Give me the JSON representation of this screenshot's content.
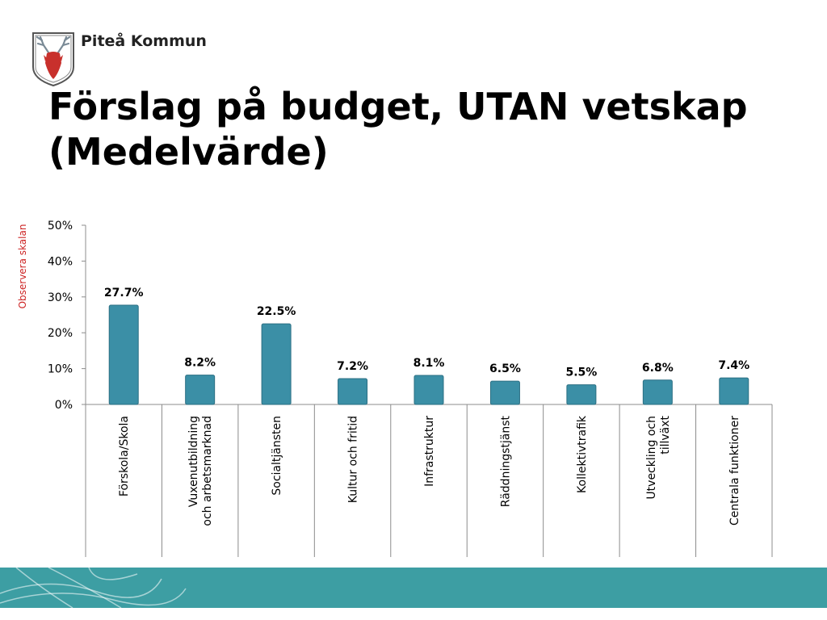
{
  "header": {
    "brand": "Piteå Kommun"
  },
  "slide": {
    "title": "Förslag på budget, UTAN vetskap (Medelvärde)",
    "side_note": "Observera skalan",
    "side_note_color": "#cc2222"
  },
  "colors": {
    "bar": "#3b8fa6",
    "bar_edge": "#2b6f83",
    "footer": "#3d9ea3"
  },
  "chart_data": {
    "type": "bar",
    "categories": [
      "Förskola/Skola",
      "Vuxenutbildning och arbetsmarknad",
      "Socialtjänsten",
      "Kultur och fritid",
      "Infrastruktur",
      "Räddningstjänst",
      "Kollektivtrafik",
      "Utveckling och tillväxt",
      "Centrala funktioner"
    ],
    "category_label_lines": [
      [
        "Förskola/Skola"
      ],
      [
        "Vuxenutbildning",
        "och arbetsmarknad"
      ],
      [
        "Socialtjänsten"
      ],
      [
        "Kultur och fritid"
      ],
      [
        "Infrastruktur"
      ],
      [
        "Räddningstjänst"
      ],
      [
        "Kollektivtrafik"
      ],
      [
        "Utveckling och",
        "tillväxt"
      ],
      [
        "Centrala funktioner"
      ]
    ],
    "values": [
      27.7,
      8.2,
      22.5,
      7.2,
      8.1,
      6.5,
      5.5,
      6.8,
      7.4
    ],
    "data_labels": [
      "27.7%",
      "8.2%",
      "22.5%",
      "7.2%",
      "8.1%",
      "6.5%",
      "5.5%",
      "6.8%",
      "7.4%"
    ],
    "ylim": [
      0,
      50
    ],
    "yticks": [
      0,
      10,
      20,
      30,
      40,
      50
    ],
    "ytick_labels": [
      "0%",
      "10%",
      "20%",
      "30%",
      "40%",
      "50%"
    ],
    "grid": false,
    "legend": "none"
  }
}
